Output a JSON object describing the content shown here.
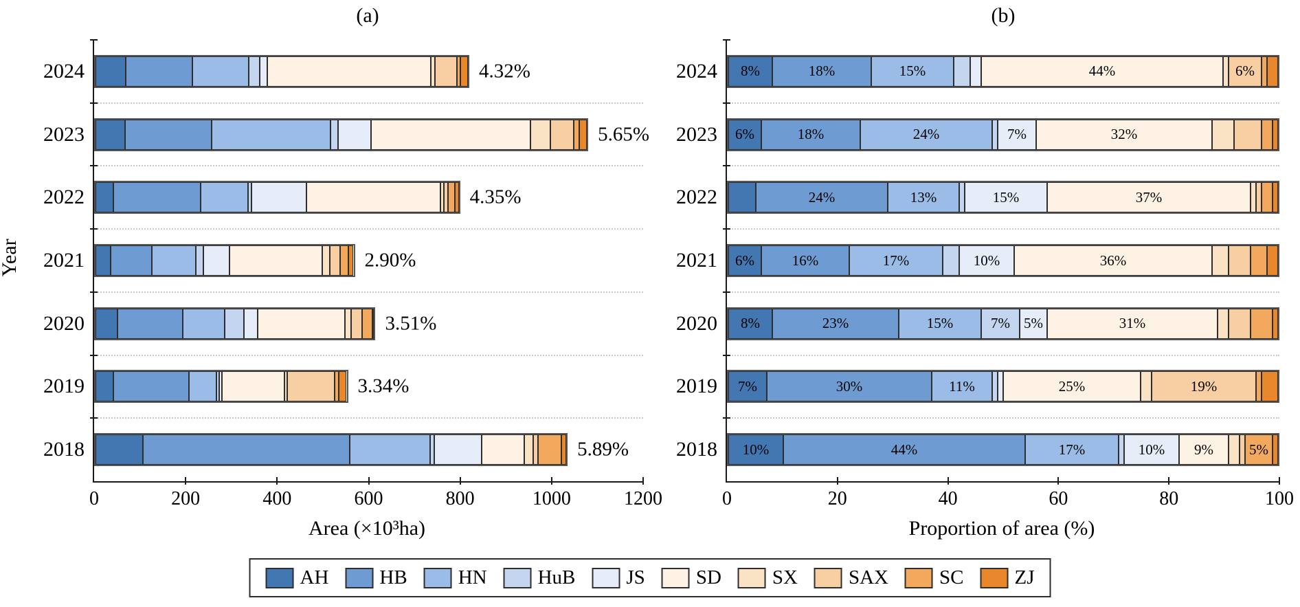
{
  "figure_title": "",
  "series_names": [
    "AH",
    "HB",
    "HN",
    "HuB",
    "JS",
    "SD",
    "SX",
    "SAX",
    "SC",
    "ZJ"
  ],
  "colors": {
    "AH": "#4377B1",
    "HB": "#6E9CD2",
    "HN": "#9ABCE6",
    "HuB": "#C3D5EF",
    "JS": "#E6EDF9",
    "SD": "#FDF2E4",
    "SX": "#FAE2C5",
    "SAX": "#F7CFA2",
    "SC": "#F2A95E",
    "ZJ": "#E8882B"
  },
  "legend": {
    "entries": [
      {
        "label": "AH",
        "color": "#4377B1"
      },
      {
        "label": "HB",
        "color": "#6E9CD2"
      },
      {
        "label": "HN",
        "color": "#9ABCE6"
      },
      {
        "label": "HuB",
        "color": "#C3D5EF"
      },
      {
        "label": "JS",
        "color": "#E6EDF9"
      },
      {
        "label": "SD",
        "color": "#FDF2E4"
      },
      {
        "label": "SX",
        "color": "#FAE2C5"
      },
      {
        "label": "SAX",
        "color": "#F7CFA2"
      },
      {
        "label": "SC",
        "color": "#F2A95E"
      },
      {
        "label": "ZJ",
        "color": "#E8882B"
      }
    ]
  },
  "chart_data": [
    {
      "type": "bar",
      "orientation": "horizontal",
      "stacked": true,
      "panel_label": "(a)",
      "xlabel": "Area (×10³ha)",
      "ylabel": "Year",
      "xlim": [
        0,
        1200
      ],
      "x_ticks": [
        0,
        200,
        400,
        600,
        800,
        1000,
        1200
      ],
      "grid": "dotted-horizontal",
      "legend_position": "bottom",
      "categories": [
        "2024",
        "2023",
        "2022",
        "2021",
        "2020",
        "2019",
        "2018"
      ],
      "series_order": [
        "AH",
        "HB",
        "HN",
        "HuB",
        "JS",
        "SD",
        "SX",
        "SAX",
        "SC",
        "ZJ"
      ],
      "rows": [
        {
          "year": "2024",
          "values": [
            66,
            148,
            123,
            25,
            16,
            361,
            8,
            49,
            8,
            16
          ],
          "total": 820,
          "end_label": "4.32%"
        },
        {
          "year": "2023",
          "values": [
            65,
            191,
            260,
            17,
            73,
            350,
            44,
            51,
            12,
            17
          ],
          "total": 1080,
          "end_label": "5.65%"
        },
        {
          "year": "2022",
          "values": [
            40,
            192,
            104,
            8,
            120,
            296,
            8,
            8,
            16,
            8
          ],
          "total": 800,
          "end_label": "4.35%"
        },
        {
          "year": "2021",
          "values": [
            34,
            91,
            97,
            17,
            57,
            205,
            17,
            23,
            17,
            12
          ],
          "total": 570,
          "end_label": "2.90%"
        },
        {
          "year": "2020",
          "values": [
            48,
            145,
            92,
            43,
            30,
            192,
            15,
            23,
            23,
            4
          ],
          "total": 615,
          "end_label": "3.51%"
        },
        {
          "year": "2019",
          "values": [
            39,
            167,
            61,
            6,
            6,
            139,
            6,
            105,
            8,
            18
          ],
          "total": 555,
          "end_label": "3.34%"
        },
        {
          "year": "2018",
          "values": [
            104,
            455,
            176,
            10,
            104,
            93,
            21,
            10,
            52,
            10
          ],
          "total": 1035,
          "end_label": "5.89%"
        }
      ]
    },
    {
      "type": "bar",
      "orientation": "horizontal",
      "stacked": true,
      "panel_label": "(b)",
      "xlabel": "Proportion of area (%)",
      "ylabel": "",
      "xlim": [
        0,
        100
      ],
      "x_ticks": [
        0,
        20,
        40,
        60,
        80,
        100
      ],
      "grid": "dotted-horizontal",
      "legend_position": "bottom",
      "categories": [
        "2024",
        "2023",
        "2022",
        "2021",
        "2020",
        "2019",
        "2018"
      ],
      "series_order": [
        "AH",
        "HB",
        "HN",
        "HuB",
        "JS",
        "SD",
        "SX",
        "SAX",
        "SC",
        "ZJ"
      ],
      "rows": [
        {
          "year": "2024",
          "values": [
            8,
            18,
            15,
            3,
            2,
            44,
            1,
            6,
            1,
            2
          ],
          "labels": [
            "8%",
            "18%",
            "15%",
            "",
            "",
            "44%",
            "",
            "6%",
            "",
            ""
          ]
        },
        {
          "year": "2023",
          "values": [
            6,
            18,
            24,
            1,
            7,
            32,
            4,
            5,
            2,
            1
          ],
          "labels": [
            "6%",
            "18%",
            "24%",
            "",
            "7%",
            "32%",
            "",
            "",
            "",
            ""
          ]
        },
        {
          "year": "2022",
          "values": [
            5,
            24,
            13,
            1,
            15,
            37,
            1,
            1,
            2,
            1
          ],
          "labels": [
            "",
            "24%",
            "13%",
            "",
            "15%",
            "37%",
            "",
            "",
            "",
            ""
          ]
        },
        {
          "year": "2021",
          "values": [
            6,
            16,
            17,
            3,
            10,
            36,
            3,
            4,
            3,
            2
          ],
          "labels": [
            "6%",
            "16%",
            "17%",
            "",
            "10%",
            "36%",
            "",
            "",
            "",
            ""
          ]
        },
        {
          "year": "2020",
          "values": [
            8,
            23,
            15,
            7,
            5,
            31,
            2,
            4,
            4,
            1
          ],
          "labels": [
            "8%",
            "23%",
            "15%",
            "7%",
            "5%",
            "31%",
            "",
            "",
            "",
            ""
          ]
        },
        {
          "year": "2019",
          "values": [
            7,
            30,
            11,
            1,
            1,
            25,
            2,
            19,
            1,
            3
          ],
          "labels": [
            "7%",
            "30%",
            "11%",
            "",
            "",
            "25%",
            "",
            "19%",
            "",
            ""
          ]
        },
        {
          "year": "2018",
          "values": [
            10,
            44,
            17,
            1,
            10,
            9,
            2,
            1,
            5,
            1
          ],
          "labels": [
            "10%",
            "44%",
            "17%",
            "",
            "10%",
            "9%",
            "",
            "",
            "5%",
            ""
          ]
        }
      ]
    }
  ]
}
